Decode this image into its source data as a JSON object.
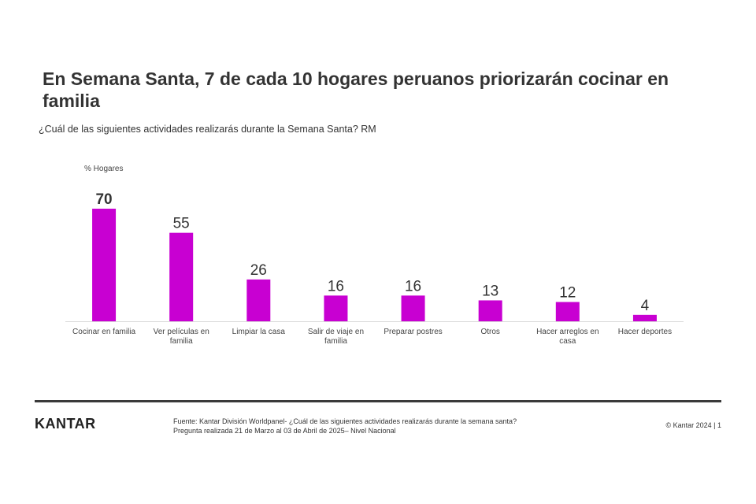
{
  "header": {
    "title": "En Semana Santa, 7 de cada 10 hogares peruanos priorizarán cocinar en familia",
    "subtitle": "¿Cuál de las siguientes actividades realizarás durante la Semana Santa? RM",
    "unit_label": "% Hogares"
  },
  "chart_data": {
    "type": "bar",
    "title": "En Semana Santa, 7 de cada 10 hogares peruanos priorizarán cocinar en familia",
    "ylabel": "% Hogares",
    "xlabel": "",
    "categories": [
      [
        "Cocinar en familia"
      ],
      [
        "Ver películas en",
        "familia"
      ],
      [
        "Limpiar la casa"
      ],
      [
        "Salir de viaje en",
        "familia"
      ],
      [
        "Preparar postres"
      ],
      [
        "Otros"
      ],
      [
        "Hacer arreglos en",
        "casa"
      ],
      [
        "Hacer deportes"
      ]
    ],
    "values": [
      70,
      55,
      26,
      16,
      16,
      13,
      12,
      4
    ],
    "data_labels": [
      "70",
      "55",
      "26",
      "16",
      "16",
      "13",
      "12",
      "4"
    ],
    "highlight_index": 0,
    "ylim": [
      0,
      70
    ],
    "grid": false,
    "bar_color": "#c800d2",
    "axis_color": "#d9d9d9"
  },
  "footer": {
    "logo": "KANTAR",
    "source_line1": "Fuente: Kantar División Worldpanel- ¿Cuál de las siguientes actividades realizarás durante la semana santa?",
    "source_line2": "Pregunta realizada 21 de Marzo al 03 de Abril de 2025– Nivel Nacional",
    "copyright": "© Kantar 2024 | 1"
  }
}
